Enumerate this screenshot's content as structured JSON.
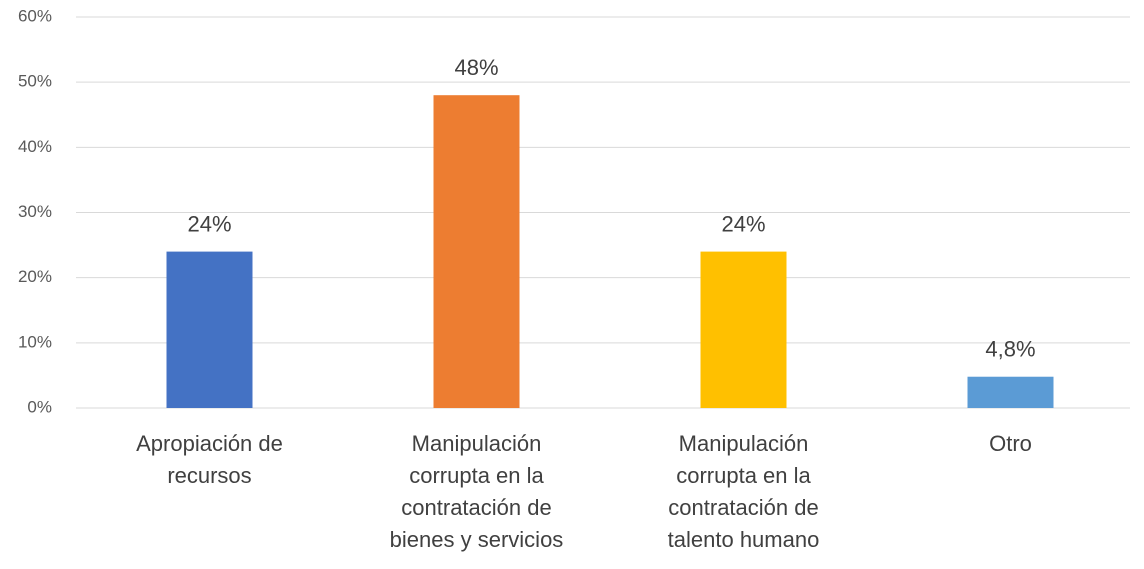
{
  "chart_data": {
    "type": "bar",
    "categories": [
      "Apropiación de recursos",
      "Manipulación corrupta en la contratación de bienes y servicios",
      "Manipulación corrupta en la contratación de talento humano",
      "Otro"
    ],
    "values": [
      24,
      48,
      24,
      4.8
    ],
    "value_labels": [
      "24%",
      "48%",
      "24%",
      "4,8%"
    ],
    "colors": [
      "#4472c4",
      "#ed7d31",
      "#ffc000",
      "#5b9bd5"
    ],
    "ylim": [
      0,
      60
    ],
    "yticks": [
      {
        "value": 0,
        "label": "0%"
      },
      {
        "value": 10,
        "label": "10%"
      },
      {
        "value": 20,
        "label": "20%"
      },
      {
        "value": 30,
        "label": "30%"
      },
      {
        "value": 40,
        "label": "40%"
      },
      {
        "value": 50,
        "label": "50%"
      },
      {
        "value": 60,
        "label": "60%"
      }
    ],
    "grid": true
  }
}
